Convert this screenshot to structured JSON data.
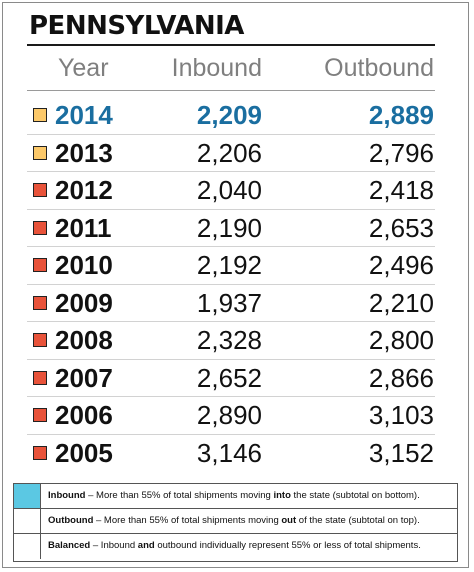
{
  "title": "PENNSYLVANIA",
  "columns": {
    "year": "Year",
    "inbound": "Inbound",
    "outbound": "Outbound"
  },
  "colors": {
    "inbound_swatch": "#5bc8e3",
    "outbound_swatch": "#fcc96a",
    "balanced_swatch": "#e8533a",
    "highlight_text": "#1a6ea0"
  },
  "rows": [
    {
      "year": "2014",
      "inbound": "2,209",
      "outbound": "2,889",
      "category": "outbound"
    },
    {
      "year": "2013",
      "inbound": "2,206",
      "outbound": "2,796",
      "category": "outbound"
    },
    {
      "year": "2012",
      "inbound": "2,040",
      "outbound": "2,418",
      "category": "balanced"
    },
    {
      "year": "2011",
      "inbound": "2,190",
      "outbound": "2,653",
      "category": "balanced"
    },
    {
      "year": "2010",
      "inbound": "2,192",
      "outbound": "2,496",
      "category": "balanced"
    },
    {
      "year": "2009",
      "inbound": "1,937",
      "outbound": "2,210",
      "category": "balanced"
    },
    {
      "year": "2008",
      "inbound": "2,328",
      "outbound": "2,800",
      "category": "balanced"
    },
    {
      "year": "2007",
      "inbound": "2,652",
      "outbound": "2,866",
      "category": "balanced"
    },
    {
      "year": "2006",
      "inbound": "2,890",
      "outbound": "3,103",
      "category": "balanced"
    },
    {
      "year": "2005",
      "inbound": "3,146",
      "outbound": "3,152",
      "category": "balanced"
    }
  ],
  "legend": [
    {
      "category": "inbound",
      "term": "Inbound",
      "pre": " – More than 55% of total shipments moving ",
      "emph": "into",
      "post": " the state (subtotal on bottom)."
    },
    {
      "category": "outbound",
      "term": "Outbound",
      "pre": " – More than 55% of total shipments moving ",
      "emph": "out",
      "post": " of the state (subtotal on top)."
    },
    {
      "category": "balanced",
      "term": "Balanced",
      "pre": " – Inbound ",
      "emph": "and",
      "post": " outbound individually represent 55% or less of total shipments."
    }
  ]
}
